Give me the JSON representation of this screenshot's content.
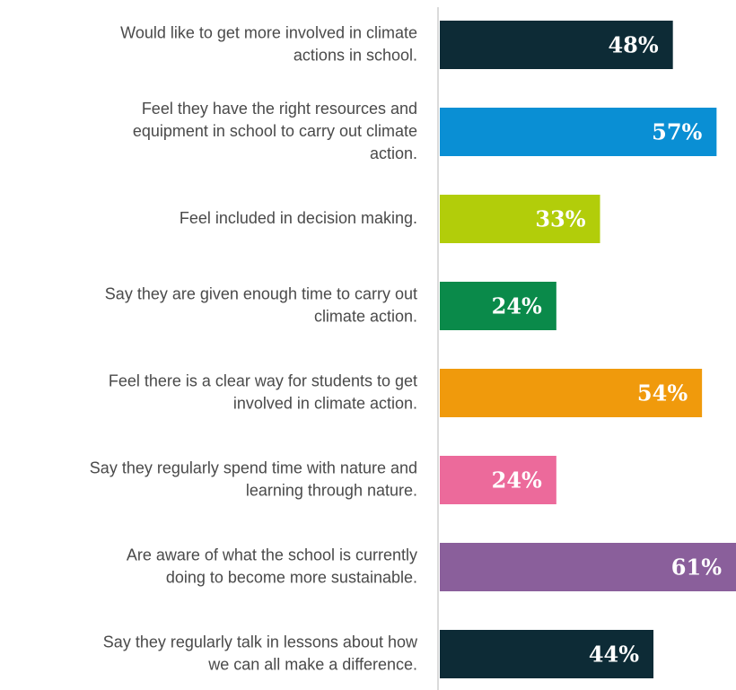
{
  "chart_data": {
    "type": "bar",
    "orientation": "horizontal",
    "categories": [
      [
        "Would like to get more involved in climate",
        "actions in school."
      ],
      [
        "Feel they have the right resources and",
        "equipment in school to carry out climate",
        "action."
      ],
      [
        "Feel included in decision making."
      ],
      [
        "Say they are given enough time to carry out",
        "climate action."
      ],
      [
        "Feel there is a clear way for students to get",
        "involved in climate action."
      ],
      [
        "Say they regularly spend time with nature and",
        "learning through nature."
      ],
      [
        "Are aware of what the school is currently",
        "doing to become more sustainable."
      ],
      [
        "Say they regularly talk in lessons about how",
        "we can all make a difference."
      ]
    ],
    "values": [
      48,
      57,
      33,
      24,
      54,
      24,
      61,
      44
    ],
    "value_labels": [
      "48%",
      "57%",
      "33%",
      "24%",
      "54%",
      "24%",
      "61%",
      "44%"
    ],
    "colors": [
      "#0d2b36",
      "#0a8fd4",
      "#b2cd0a",
      "#0a8a4a",
      "#f09a0c",
      "#ec6a9b",
      "#8a5f9b",
      "#0d2b36"
    ],
    "xlim": [
      0,
      61
    ]
  }
}
